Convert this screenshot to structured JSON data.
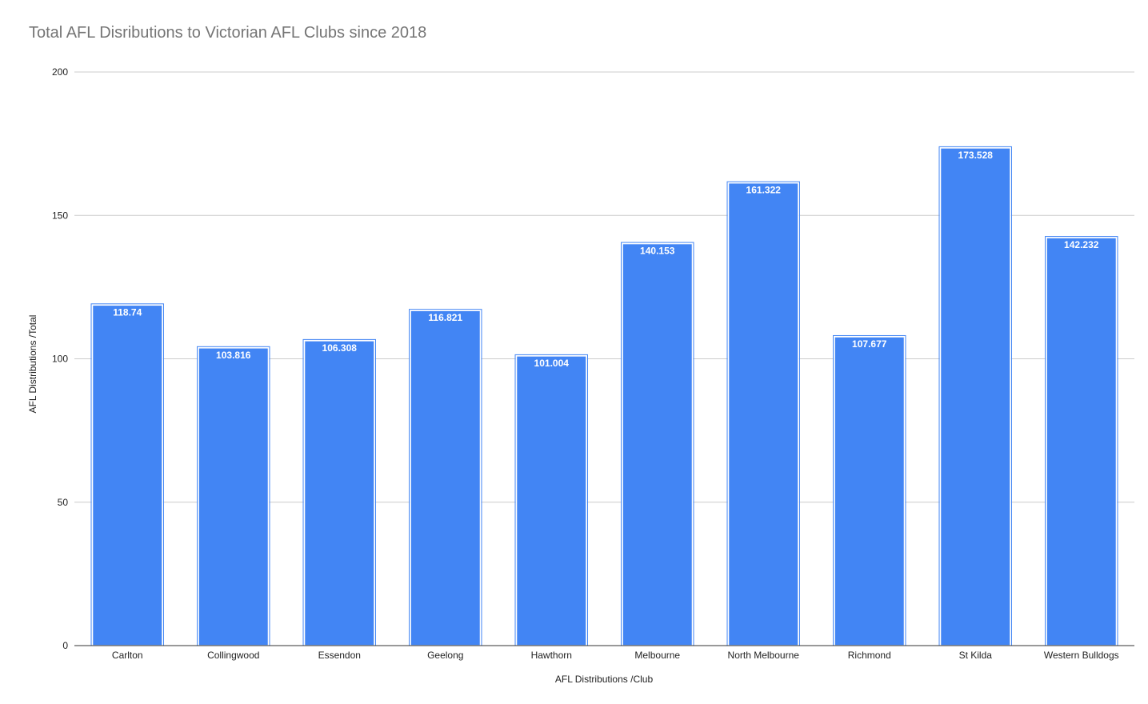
{
  "chart_data": {
    "type": "bar",
    "title": "Total AFL Disributions to Victorian AFL Clubs since 2018",
    "xlabel": "AFL Distributions /Club",
    "ylabel": "AFL Distributions /Total",
    "categories": [
      "Carlton",
      "Collingwood",
      "Essendon",
      "Geelong",
      "Hawthorn",
      "Melbourne",
      "North Melbourne",
      "Richmond",
      "St Kilda",
      "Western Bulldogs"
    ],
    "values": [
      118.74,
      103.816,
      106.308,
      116.821,
      101.004,
      140.153,
      161.322,
      107.677,
      173.528,
      142.232
    ],
    "data_labels": [
      "118.74",
      "103.816",
      "106.308",
      "116.821",
      "101.004",
      "140.153",
      "161.322",
      "107.677",
      "173.528",
      "142.232"
    ],
    "ylim": [
      0,
      200
    ],
    "yticks": [
      0,
      50,
      100,
      150,
      200
    ],
    "grid": true,
    "legend": "none",
    "bar_color": "#4285F4",
    "grid_color": "#CCCCCC",
    "axis_color": "#333333"
  }
}
